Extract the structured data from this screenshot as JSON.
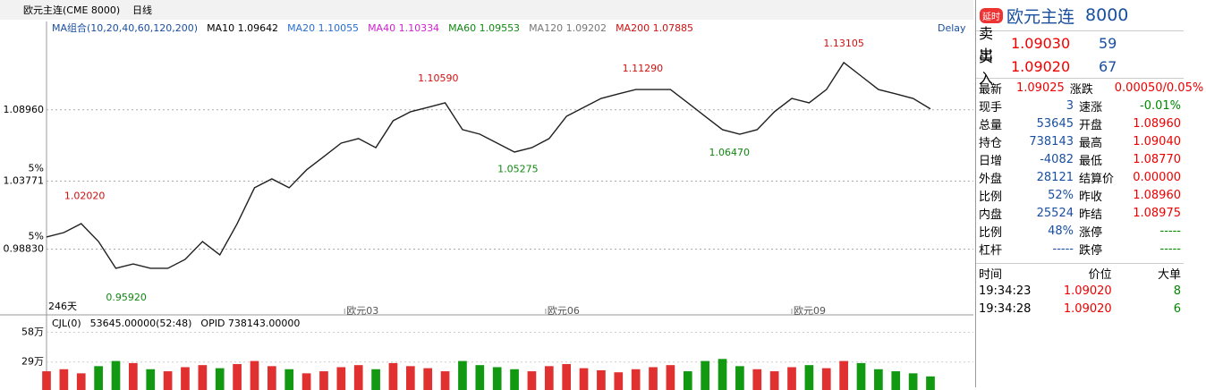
{
  "header": {
    "instrument": "欧元主连(CME 8000)",
    "period": "日线",
    "ma_legend": [
      "MA组合(10,20,40,60,120,200)",
      "MA10 1.09642",
      "MA20 1.10055",
      "MA40 1.10334",
      "MA60 1.09553",
      "MA120 1.09202",
      "MA200 1.07885"
    ],
    "delay": "Delay",
    "days": "246天"
  },
  "chart_data": {
    "type": "line",
    "x": [
      0,
      5,
      10,
      15,
      20,
      25,
      30,
      35,
      40,
      45,
      50,
      55,
      60,
      65,
      70,
      75,
      80,
      85,
      90,
      95,
      100,
      105,
      110,
      115,
      120,
      125,
      130,
      135,
      140,
      145,
      150,
      155,
      160,
      165,
      170,
      175,
      180,
      185,
      190,
      195,
      200,
      205,
      210,
      215,
      220,
      225,
      230,
      235,
      240,
      245,
      250,
      255
    ],
    "series": [
      {
        "color": "#202020",
        "values": [
          0.9971,
          1.0003,
          1.0068,
          0.9938,
          0.9743,
          0.9775,
          0.9743,
          0.9743,
          0.9808,
          0.9938,
          0.9841,
          1.0068,
          1.0329,
          1.0394,
          1.0329,
          1.0459,
          1.0556,
          1.0654,
          1.0687,
          1.0621,
          1.0817,
          1.0882,
          1.0914,
          1.0947,
          1.0752,
          1.0719,
          1.0654,
          1.0589,
          1.0621,
          1.0687,
          1.0849,
          1.0914,
          1.0979,
          1.1012,
          1.1044,
          1.1044,
          1.1044,
          1.0947,
          1.0849,
          1.0752,
          1.0719,
          1.0752,
          1.0882,
          1.0979,
          1.0947,
          1.1044,
          1.124,
          1.1142,
          1.1044,
          1.1012,
          1.0979,
          1.0903
        ]
      }
    ],
    "xlim": [
      0,
      255
    ],
    "xticks": [
      {
        "value": 86,
        "label": "欧元03"
      },
      {
        "value": 144,
        "label": "欧元06"
      },
      {
        "value": 215,
        "label": "欧元09"
      }
    ],
    "ylim": [
      0.945,
      1.15
    ],
    "yticks": [
      {
        "value": 1.0896,
        "label": "1.08960"
      },
      {
        "value": 1.03771,
        "label": "1.03771"
      },
      {
        "value": 0.9883,
        "label": "0.98830"
      }
    ],
    "pct_labels": [
      "5%",
      "5%"
    ],
    "annotations": [
      {
        "x": 11,
        "value": 1.0202,
        "label": "1.02020"
      },
      {
        "x": 23,
        "value": 0.9592,
        "label": "0.95920"
      },
      {
        "x": 113,
        "value": 1.1059,
        "label": "1.10590"
      },
      {
        "x": 136,
        "value": 1.05275,
        "label": "1.05275"
      },
      {
        "x": 172,
        "value": 1.1129,
        "label": "1.11290"
      },
      {
        "x": 197,
        "value": 1.0647,
        "label": "1.06470"
      },
      {
        "x": 230,
        "value": 1.13105,
        "label": "1.13105"
      }
    ],
    "volume": {
      "header": [
        "CJL(0)",
        "53645.00000(52:48)",
        "OPID 738143.00000"
      ],
      "values": [
        20,
        22,
        18,
        25,
        30,
        28,
        22,
        20,
        24,
        26,
        23,
        27,
        30,
        25,
        22,
        18,
        20,
        24,
        26,
        22,
        28,
        25,
        23,
        20,
        30,
        26,
        24,
        22,
        20,
        25,
        27,
        23,
        21,
        19,
        22,
        24,
        26,
        20,
        30,
        32,
        25,
        22,
        20,
        24,
        26,
        23,
        30,
        28,
        22,
        20,
        18,
        15
      ],
      "ylim": [
        0,
        68
      ],
      "yticks": [
        {
          "value": 58,
          "label": "58万"
        },
        {
          "value": 29,
          "label": "29万"
        }
      ]
    }
  },
  "panel": {
    "badge": "延时",
    "name": "欧元主连",
    "code": "8000",
    "ask": [
      "卖出",
      "1.09030",
      "59"
    ],
    "bid": [
      "买入",
      "1.09020",
      "67"
    ],
    "stats": [
      [
        "最新",
        "1.09025",
        "涨跌",
        "0.00050/0.05%"
      ],
      [
        "现手",
        "3",
        "速涨",
        "-0.01%"
      ],
      [
        "总量",
        "53645",
        "开盘",
        "1.08960"
      ],
      [
        "持仓",
        "738143",
        "最高",
        "1.09040"
      ],
      [
        "日增",
        "-4082",
        "最低",
        "1.08770"
      ],
      [
        "外盘",
        "28121",
        "结算价",
        "0.00000"
      ],
      [
        "比例",
        "52%",
        "昨收",
        "1.08960"
      ],
      [
        "内盘",
        "25524",
        "昨结",
        "1.08975"
      ],
      [
        "比例",
        "48%",
        "涨停",
        "-----"
      ],
      [
        "杠杆",
        "-----",
        "跌停",
        "-----"
      ]
    ],
    "trade_header": [
      "时间",
      "价位",
      "大单"
    ],
    "trades": [
      [
        "19:34:23",
        "1.09020",
        "8"
      ],
      [
        "19:34:28",
        "1.09020",
        "6"
      ]
    ]
  }
}
